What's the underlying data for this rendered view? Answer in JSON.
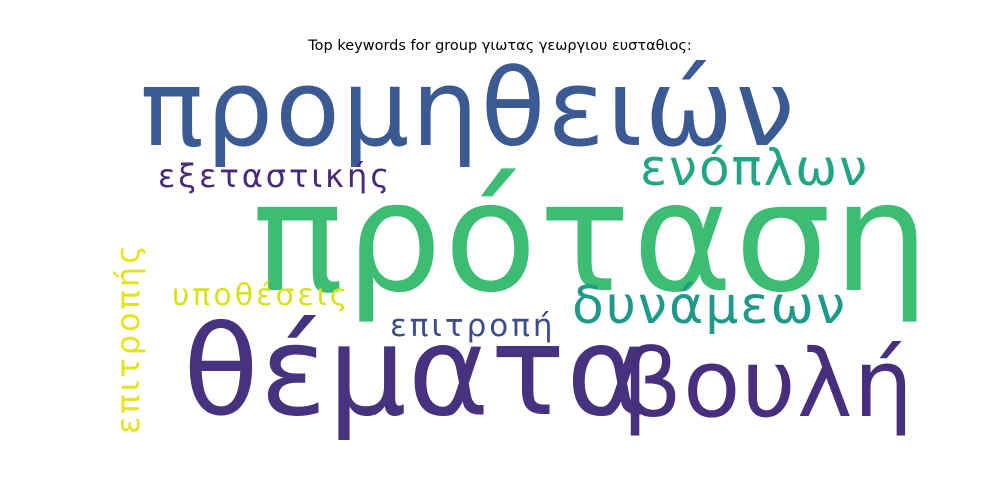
{
  "title": "Top keywords for group γιωτας γεωργιου ευσταθιος:",
  "words": [
    {
      "text": "πρόταση",
      "color": "#3dbc74"
    },
    {
      "text": "προμηθειών",
      "color": "#3b5a93"
    },
    {
      "text": "θέματα",
      "color": "#46327e"
    },
    {
      "text": "βουλή",
      "color": "#472f7d"
    },
    {
      "text": "ενόπλων",
      "color": "#21a585"
    },
    {
      "text": "δυνάμεων",
      "color": "#1f9a8a"
    },
    {
      "text": "εξεταστικής",
      "color": "#482878"
    },
    {
      "text": "υποθέσεις",
      "color": "#d8e219"
    },
    {
      "text": "επιτροπή",
      "color": "#3e4c8a"
    },
    {
      "text": "επιτροπής",
      "color": "#e5e419"
    }
  ]
}
